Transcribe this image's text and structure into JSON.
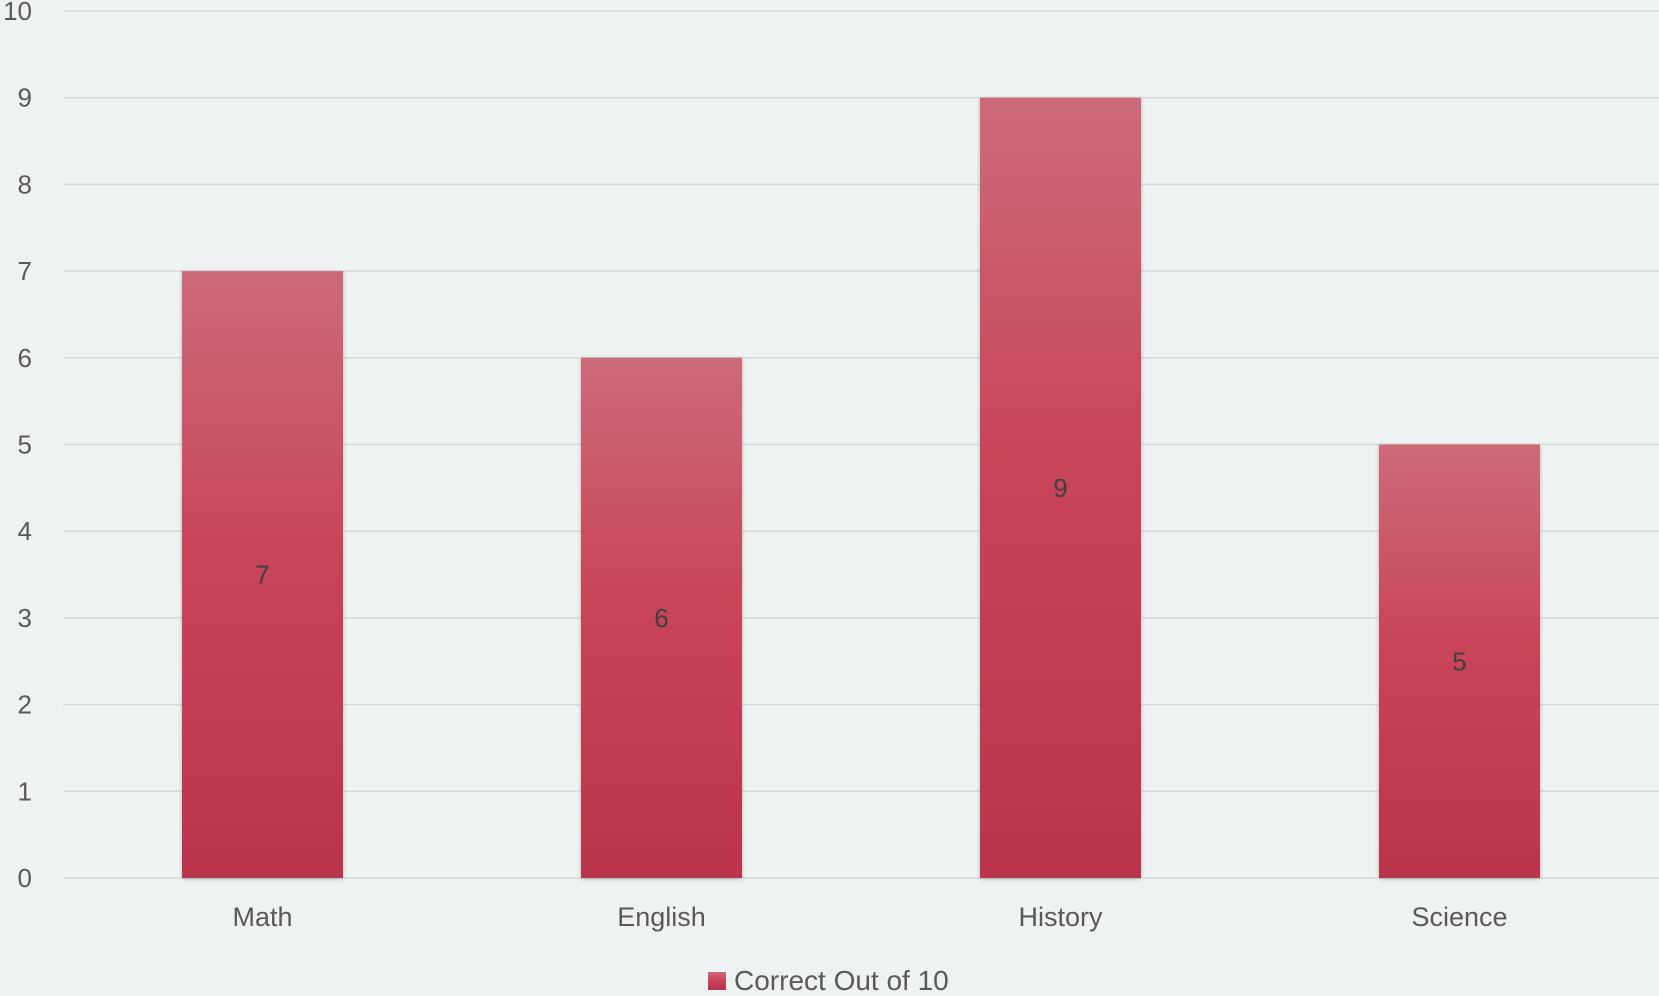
{
  "chart_data": {
    "type": "bar",
    "categories": [
      "Math",
      "English",
      "History",
      "Science"
    ],
    "series": [
      {
        "name": "Correct Out of 10",
        "values": [
          7,
          6,
          9,
          5
        ]
      }
    ],
    "ylim": [
      0,
      10
    ],
    "yticks": [
      "0",
      "1",
      "2",
      "3",
      "4",
      "5",
      "6",
      "7",
      "8",
      "9",
      "10"
    ],
    "data_labels": [
      "7",
      "6",
      "9",
      "5"
    ],
    "grid": true,
    "legend_position": "bottom",
    "colors": {
      "background": "#eff2f3",
      "bar_top": "#cc6b78",
      "bar_mid": "#c94559",
      "bar_bottom": "#b9344b",
      "gridline": "#d5d9dc",
      "axis_text": "#595959",
      "label_text": "#404040"
    }
  }
}
